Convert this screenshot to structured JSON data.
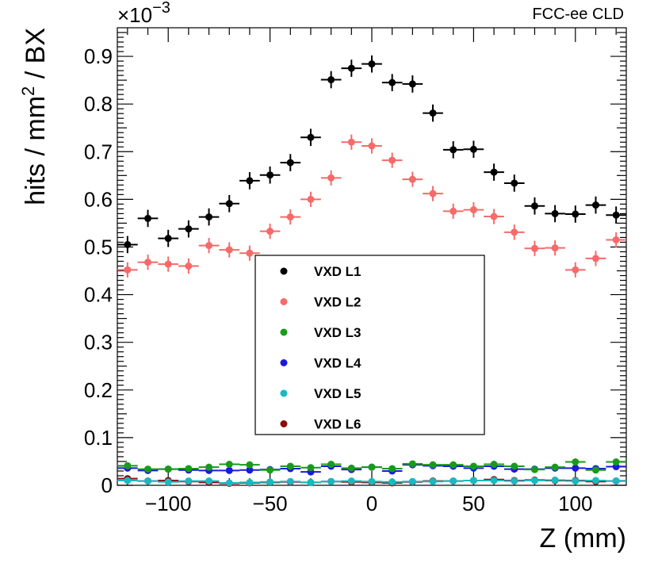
{
  "header": {
    "experiment_label": "FCC-ee CLD"
  },
  "chart_data": {
    "type": "scatter",
    "title": "",
    "xlabel": "Z (mm)",
    "ylabel_prefix": "hits / mm",
    "ylabel_superscript": "2",
    "ylabel_suffix": " / BX",
    "y_multiplier_base": "×10",
    "y_multiplier_exponent": "−3",
    "xlim": [
      -125,
      125
    ],
    "ylim": [
      0,
      0.96
    ],
    "x_ticks": [
      -100,
      -50,
      0,
      50,
      100
    ],
    "x_tick_labels": [
      "−100",
      "−50",
      "0",
      "50",
      "100"
    ],
    "y_ticks": [
      0,
      0.1,
      0.2,
      0.3,
      0.4,
      0.5,
      0.6,
      0.7,
      0.8,
      0.9
    ],
    "y_tick_labels": [
      "0",
      "0.1",
      "0.2",
      "0.3",
      "0.4",
      "0.5",
      "0.6",
      "0.7",
      "0.8",
      "0.9"
    ],
    "x_bin_half_width": 5,
    "x": [
      -120,
      -110,
      -100,
      -90,
      -80,
      -70,
      -60,
      -50,
      -40,
      -30,
      -20,
      -10,
      0,
      10,
      20,
      30,
      40,
      50,
      60,
      70,
      80,
      90,
      100,
      110,
      120
    ],
    "legend_position": "center",
    "series": [
      {
        "name": "VXD L1",
        "color": "#000000",
        "y_err": 0.018,
        "values": [
          0.505,
          0.56,
          0.518,
          0.538,
          0.563,
          0.591,
          0.639,
          0.651,
          0.677,
          0.73,
          0.851,
          0.875,
          0.884,
          0.845,
          0.842,
          0.781,
          0.704,
          0.705,
          0.657,
          0.634,
          0.586,
          0.57,
          0.569,
          0.588,
          0.567
        ]
      },
      {
        "name": "VXD L2",
        "color": "#f66a6a",
        "y_err": 0.016,
        "values": [
          0.452,
          0.468,
          0.464,
          0.46,
          0.503,
          0.494,
          0.487,
          0.533,
          0.563,
          0.6,
          0.645,
          0.72,
          0.712,
          0.682,
          0.642,
          0.612,
          0.575,
          0.578,
          0.564,
          0.531,
          0.497,
          0.498,
          0.452,
          0.476,
          0.515
        ]
      },
      {
        "name": "VXD L3",
        "color": "#1a9a1a",
        "y_err": 0.004,
        "values": [
          0.041,
          0.034,
          0.034,
          0.035,
          0.038,
          0.044,
          0.043,
          0.032,
          0.04,
          0.037,
          0.044,
          0.036,
          0.038,
          0.035,
          0.045,
          0.043,
          0.043,
          0.04,
          0.044,
          0.04,
          0.033,
          0.038,
          0.049,
          0.032,
          0.049
        ]
      },
      {
        "name": "VXD L4",
        "color": "#1a1adc",
        "y_err": 0.004,
        "values": [
          0.036,
          0.031,
          0.034,
          0.032,
          0.031,
          0.031,
          0.032,
          0.033,
          0.035,
          0.028,
          0.04,
          0.033,
          0.038,
          0.03,
          0.043,
          0.041,
          0.04,
          0.036,
          0.04,
          0.034,
          0.034,
          0.036,
          0.036,
          0.035,
          0.039
        ]
      },
      {
        "name": "VXD L5",
        "color": "#1ab8c0",
        "y_err": 0.003,
        "values": [
          0.01,
          0.009,
          0.007,
          0.009,
          0.009,
          0.005,
          0.006,
          0.007,
          0.008,
          0.006,
          0.008,
          0.009,
          0.008,
          0.007,
          0.008,
          0.008,
          0.009,
          0.01,
          0.01,
          0.009,
          0.01,
          0.011,
          0.009,
          0.01,
          0.009
        ]
      },
      {
        "name": "VXD L6",
        "color": "#8b0a0a",
        "y_err": 0.003,
        "values": [
          0.014,
          0.009,
          0.01,
          0.008,
          0.006,
          0.004,
          0.005,
          0.006,
          0.007,
          0.006,
          0.008,
          0.007,
          0.006,
          0.005,
          0.007,
          0.009,
          0.009,
          0.01,
          0.012,
          0.01,
          0.011,
          0.01,
          0.01,
          0.008,
          0.009
        ]
      }
    ]
  }
}
